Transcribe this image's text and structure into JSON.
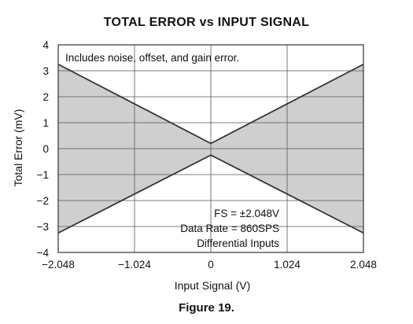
{
  "figure_caption": "Figure 19.",
  "chart_data": {
    "type": "area",
    "title": "TOTAL ERROR vs INPUT SIGNAL",
    "xlabel": "Input Signal (V)",
    "ylabel": "Total Error (mV)",
    "xlim": [
      -2.048,
      2.048
    ],
    "ylim": [
      -4,
      4
    ],
    "x_ticks": [
      -2.048,
      -1.024,
      0,
      1.024,
      2.048
    ],
    "x_tick_labels": [
      "−2.048",
      "−1.024",
      "0",
      "1.024",
      "2.048"
    ],
    "y_ticks": [
      -4,
      -3,
      -2,
      -1,
      0,
      1,
      2,
      3,
      4
    ],
    "y_tick_labels": [
      "−4",
      "−3",
      "−2",
      "−1",
      "0",
      "1",
      "2",
      "3",
      "4"
    ],
    "grid": true,
    "series": [
      {
        "x": [
          -2.048,
          0,
          2.048
        ],
        "values": [
          3.25,
          0.2,
          3.25
        ]
      },
      {
        "x": [
          -2.048,
          0,
          2.048
        ],
        "values": [
          -3.25,
          -0.25,
          -3.25
        ]
      }
    ],
    "fill_color": "#cfcfcf",
    "line_color": "#333333",
    "annotations": {
      "top_left": "Includes noise, offset, and gain error.",
      "bottom_right": [
        "FS = ±2.048V",
        "Data Rate = 860SPS",
        "Differential Inputs"
      ]
    }
  }
}
